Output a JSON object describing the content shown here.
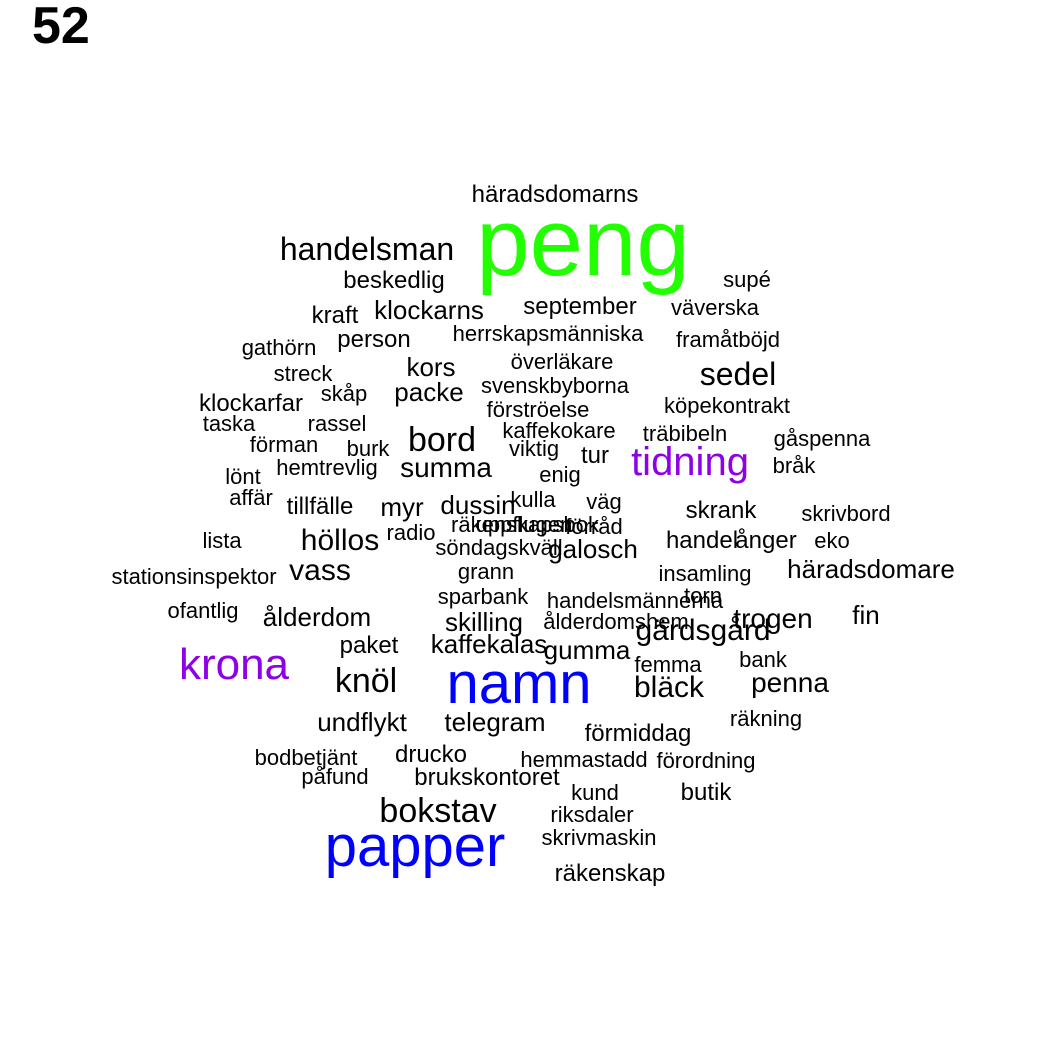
{
  "figure_label": "52",
  "colors": {
    "default": "#000000",
    "green": "#22ff00",
    "purple": "#8e00e6",
    "blue": "#0000ff"
  },
  "words": [
    {
      "text": "peng",
      "color": "green"
    },
    {
      "text": "namn",
      "color": "blue"
    },
    {
      "text": "papper",
      "color": "blue"
    },
    {
      "text": "krona",
      "color": "purple"
    },
    {
      "text": "tidning",
      "color": "purple"
    },
    {
      "text": "häradsdomarns"
    },
    {
      "text": "handelsman"
    },
    {
      "text": "beskedlig"
    },
    {
      "text": "supé"
    },
    {
      "text": "kraft"
    },
    {
      "text": "klockarns"
    },
    {
      "text": "september"
    },
    {
      "text": "väverska"
    },
    {
      "text": "person"
    },
    {
      "text": "herrskapsmänniska"
    },
    {
      "text": "framåtböjd"
    },
    {
      "text": "gathörn"
    },
    {
      "text": "kors"
    },
    {
      "text": "överläkare"
    },
    {
      "text": "sedel"
    },
    {
      "text": "streck"
    },
    {
      "text": "skåp"
    },
    {
      "text": "packe"
    },
    {
      "text": "svenskbyborna"
    },
    {
      "text": "klockarfar"
    },
    {
      "text": "förströelse"
    },
    {
      "text": "köpekontrakt"
    },
    {
      "text": "taska"
    },
    {
      "text": "rassel"
    },
    {
      "text": "kaffekokare"
    },
    {
      "text": "bord"
    },
    {
      "text": "träbibeln"
    },
    {
      "text": "förman"
    },
    {
      "text": "burk"
    },
    {
      "text": "viktig"
    },
    {
      "text": "gåspenna"
    },
    {
      "text": "tur"
    },
    {
      "text": "hemtrevlig"
    },
    {
      "text": "summa"
    },
    {
      "text": "lönt"
    },
    {
      "text": "enig"
    },
    {
      "text": "bråk"
    },
    {
      "text": "affär"
    },
    {
      "text": "tillfälle"
    },
    {
      "text": "myr"
    },
    {
      "text": "dussin"
    },
    {
      "text": "kulla"
    },
    {
      "text": "väg"
    },
    {
      "text": "skrank"
    },
    {
      "text": "skrivbord"
    },
    {
      "text": "uppflugen"
    },
    {
      "text": "förråd"
    },
    {
      "text": "radio"
    },
    {
      "text": "höllos"
    },
    {
      "text": "lista"
    },
    {
      "text": "söndagskväll"
    },
    {
      "text": "galosch"
    },
    {
      "text": "handel"
    },
    {
      "text": "ånger"
    },
    {
      "text": "eko"
    },
    {
      "text": "vass"
    },
    {
      "text": "grann"
    },
    {
      "text": "stationsinspektor"
    },
    {
      "text": "insamling"
    },
    {
      "text": "häradsdomare"
    },
    {
      "text": "sparbank"
    },
    {
      "text": "handelsmännerna"
    },
    {
      "text": "torn"
    },
    {
      "text": "ofantlig"
    },
    {
      "text": "ålderdom"
    },
    {
      "text": "skilling"
    },
    {
      "text": "ålderdomshem"
    },
    {
      "text": "trogen"
    },
    {
      "text": "fin"
    },
    {
      "text": "gärdsgård"
    },
    {
      "text": "paket"
    },
    {
      "text": "kaffekalas"
    },
    {
      "text": "gumma"
    },
    {
      "text": "bank"
    },
    {
      "text": "femma"
    },
    {
      "text": "knöl"
    },
    {
      "text": "penna"
    },
    {
      "text": "bläck"
    },
    {
      "text": "räkning"
    },
    {
      "text": "undflykt"
    },
    {
      "text": "telegram"
    },
    {
      "text": "förmiddag"
    },
    {
      "text": "bodbetjänt"
    },
    {
      "text": "drucko"
    },
    {
      "text": "hemmastadd"
    },
    {
      "text": "förordning"
    },
    {
      "text": "påfund"
    },
    {
      "text": "brukskontoret"
    },
    {
      "text": "kund"
    },
    {
      "text": "butik"
    },
    {
      "text": "bokstav"
    },
    {
      "text": "riksdaler"
    },
    {
      "text": "skrivmaskin"
    },
    {
      "text": "räkenskap"
    },
    {
      "text": "räkenskapsbok"
    }
  ]
}
